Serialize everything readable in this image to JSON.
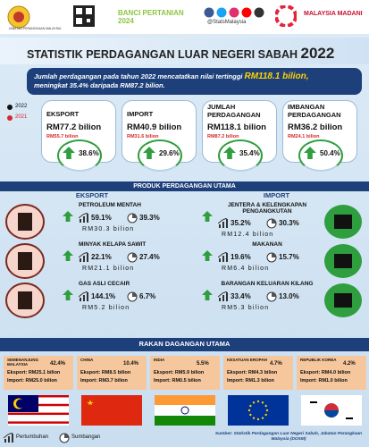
{
  "header": {
    "agency": "JABATAN PERANGKAAN MALAYSIA",
    "census": "BANCI PERTANIAN 2024",
    "handle": "@StatsMalaysia",
    "madani": "MALAYSIA MADANI"
  },
  "title": {
    "text": "STATISTIK PERDAGANGAN LUAR NEGERI SABAH",
    "year": "2022"
  },
  "intro": {
    "text1": "Jumlah perdagangan pada tahun 2022 mencatatkan nilai tertinggi",
    "highlight": "RM118.1 bilion,",
    "text2": "meningkat 35.4% daripada RM87.2 bilion."
  },
  "legend": [
    "2022",
    "2021"
  ],
  "summary": [
    {
      "label": "EKSPORT",
      "current": "RM77.2 bilion",
      "previous": "RM55.7 bilion",
      "growth": "38.6%"
    },
    {
      "label": "IMPORT",
      "current": "RM40.9 bilion",
      "previous": "RM31.6 bilion",
      "growth": "29.6%"
    },
    {
      "label": "JUMLAH PERDAGANGAN",
      "current": "RM118.1 bilion",
      "previous": "RM87.2 bilion",
      "growth": "35.4%"
    },
    {
      "label": "IMBANGAN PERDAGANGAN",
      "current": "RM36.2 bilion",
      "previous": "RM24.1 bilion",
      "growth": "50.4%"
    }
  ],
  "products": {
    "title": "PRODUK PERDAGANGAN UTAMA",
    "export": {
      "label": "EKSPORT",
      "items": [
        {
          "name": "PETROLEUM MENTAH",
          "growth": "59.1%",
          "share": "39.3%",
          "value": "RM30.3 bilion"
        },
        {
          "name": "MINYAK KELAPA SAWIT",
          "growth": "22.1%",
          "share": "27.4%",
          "value": "RM21.1 bilion"
        },
        {
          "name": "GAS ASLI CECAIR",
          "growth": "144.1%",
          "share": "6.7%",
          "value": "RM5.2 bilion"
        }
      ]
    },
    "import": {
      "label": "IMPORT",
      "items": [
        {
          "name": "JENTERA & KELENGKAPAN PENGANGKUTAN",
          "growth": "35.2%",
          "share": "30.3%",
          "value": "RM12.4 bilion"
        },
        {
          "name": "MAKANAN",
          "growth": "19.6%",
          "share": "15.7%",
          "value": "RM6.4 bilion"
        },
        {
          "name": "BARANGAN KELUARAN KILANG",
          "growth": "33.4%",
          "share": "13.0%",
          "value": "RM5.3 bilion"
        }
      ]
    }
  },
  "partners": {
    "title": "RAKAN DAGANGAN UTAMA",
    "items": [
      {
        "name": "SEMENANJUNG MALAYSIA",
        "share": "42.4%",
        "export": "Eksport: RM25.1 bilion",
        "import": "Import: RM25.0 bilion"
      },
      {
        "name": "CHINA",
        "share": "10.4%",
        "export": "Eksport: RM8.5 bilion",
        "import": "Import: RM3.7 bilion"
      },
      {
        "name": "INDIA",
        "share": "5.5%",
        "export": "Eksport: RM5.9 bilion",
        "import": "Import: RM0.5 bilion"
      },
      {
        "name": "KESATUAN EROPAH",
        "share": "4.7%",
        "export": "Eksport: RM4.3 bilion",
        "import": "Import: RM1.3 bilion"
      },
      {
        "name": "REPUBLIK KOREA",
        "share": "4.2%",
        "export": "Eksport: RM4.0 bilion",
        "import": "Import: RM1.0 bilion"
      }
    ]
  },
  "footer": {
    "growth": "Pertumbuhan",
    "share": "Sumbangan",
    "source": "Sumber: Statistik Perdagangan Luar Negeri Sabah, Jabatan Perangkaan Malaysia (DOSM)"
  }
}
